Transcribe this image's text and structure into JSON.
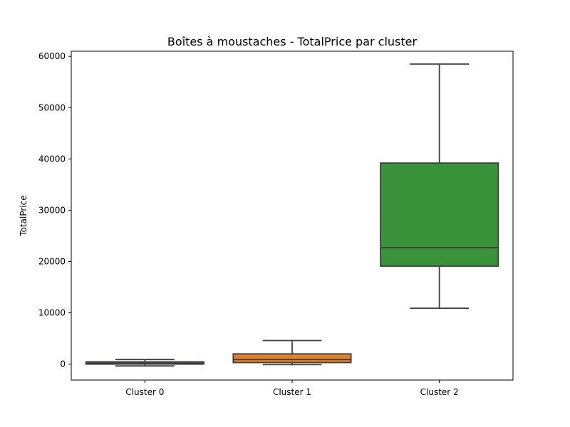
{
  "chart_data": {
    "type": "box",
    "title": "Boîtes à moustaches - TotalPrice par cluster",
    "xlabel": "",
    "ylabel": "TotalPrice",
    "ylim": [
      -3100,
      61000
    ],
    "yticks": [
      0,
      10000,
      20000,
      30000,
      40000,
      50000,
      60000
    ],
    "ytick_labels": [
      "0",
      "10000",
      "20000",
      "30000",
      "40000",
      "50000",
      "60000"
    ],
    "grid": false,
    "categories": [
      "Cluster 0",
      "Cluster 1",
      "Cluster 2"
    ],
    "boxes": [
      {
        "category": "Cluster 0",
        "whisker_low": -350,
        "q1": 0,
        "median": 200,
        "q3": 450,
        "whisker_high": 900,
        "color": "#3274a1"
      },
      {
        "category": "Cluster 1",
        "whisker_low": -100,
        "q1": 300,
        "median": 900,
        "q3": 2000,
        "whisker_high": 4600,
        "color": "#e1812c"
      },
      {
        "category": "Cluster 2",
        "whisker_low": 10900,
        "q1": 19100,
        "median": 22700,
        "q3": 39200,
        "whisker_high": 58500,
        "color": "#3a923a"
      }
    ]
  }
}
